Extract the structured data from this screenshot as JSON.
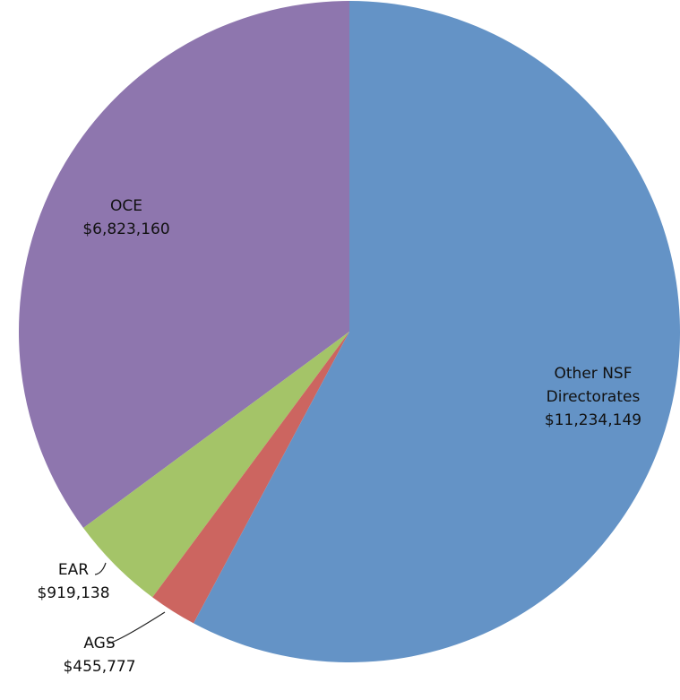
{
  "chart_data": {
    "type": "pie",
    "categories": [
      "Other NSF Directorates",
      "AGS",
      "EAR",
      "OCE"
    ],
    "values": [
      11234149,
      455777,
      919138,
      6823160
    ],
    "value_labels": [
      "$11,234,149",
      "$455,777",
      "$919,138",
      "$6,823,160"
    ],
    "colors": [
      "#6493c6",
      "#cc6560",
      "#a4c468",
      "#8e76ae"
    ]
  }
}
